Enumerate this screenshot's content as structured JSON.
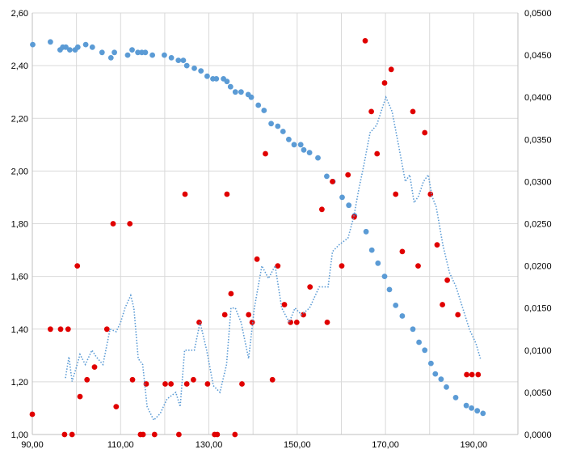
{
  "chart_data": {
    "type": "scatter",
    "title": "",
    "xlabel": "",
    "ylabel": "",
    "y2label": "",
    "xlim": [
      90,
      200
    ],
    "ylim": [
      1.0,
      2.6
    ],
    "y2lim": [
      0,
      0.05
    ],
    "grid": true,
    "legend": "none",
    "x_ticks": [
      "90,00",
      "110,00",
      "130,00",
      "150,00",
      "170,00",
      "190,00"
    ],
    "y_ticks": [
      "1,00",
      "1,20",
      "1,40",
      "1,60",
      "1,80",
      "2,00",
      "2,20",
      "2,40",
      "2,60"
    ],
    "y2_ticks": [
      "0,0000",
      "0,0050",
      "0,0100",
      "0,0150",
      "0,0200",
      "0,0250",
      "0,0300",
      "0,0350",
      "0,0400",
      "0,0450",
      "0,0500"
    ],
    "series": [
      {
        "axis": "left",
        "style": "markers",
        "color": "#5b9bd5",
        "points": [
          [
            90.1,
            2.48
          ],
          [
            94.1,
            2.49
          ],
          [
            96.3,
            2.46
          ],
          [
            96.9,
            2.47
          ],
          [
            97.6,
            2.47
          ],
          [
            98.5,
            2.46
          ],
          [
            99.7,
            2.46
          ],
          [
            100.3,
            2.47
          ],
          [
            102.1,
            2.48
          ],
          [
            103.6,
            2.47
          ],
          [
            105.8,
            2.45
          ],
          [
            107.8,
            2.43
          ],
          [
            108.6,
            2.45
          ],
          [
            111.6,
            2.44
          ],
          [
            112.6,
            2.46
          ],
          [
            113.9,
            2.45
          ],
          [
            114.8,
            2.45
          ],
          [
            115.6,
            2.45
          ],
          [
            117.2,
            2.44
          ],
          [
            119.9,
            2.44
          ],
          [
            121.5,
            2.43
          ],
          [
            123.1,
            2.42
          ],
          [
            124.2,
            2.42
          ],
          [
            125.0,
            2.4
          ],
          [
            126.7,
            2.39
          ],
          [
            128.2,
            2.38
          ],
          [
            129.6,
            2.36
          ],
          [
            130.9,
            2.35
          ],
          [
            131.7,
            2.35
          ],
          [
            133.3,
            2.35
          ],
          [
            134.1,
            2.34
          ],
          [
            134.9,
            2.32
          ],
          [
            136.0,
            2.3
          ],
          [
            137.3,
            2.3
          ],
          [
            138.9,
            2.29
          ],
          [
            139.6,
            2.28
          ],
          [
            141.2,
            2.25
          ],
          [
            142.5,
            2.23
          ],
          [
            144.1,
            2.18
          ],
          [
            145.6,
            2.17
          ],
          [
            146.8,
            2.15
          ],
          [
            148.1,
            2.12
          ],
          [
            149.3,
            2.1
          ],
          [
            150.8,
            2.1
          ],
          [
            151.5,
            2.08
          ],
          [
            152.8,
            2.07
          ],
          [
            154.7,
            2.05
          ],
          [
            156.7,
            1.98
          ],
          [
            158.1,
            1.96
          ],
          [
            160.2,
            1.9
          ],
          [
            161.7,
            1.87
          ],
          [
            163.0,
            1.83
          ],
          [
            165.6,
            1.77
          ],
          [
            166.9,
            1.7
          ],
          [
            168.3,
            1.65
          ],
          [
            169.8,
            1.6
          ],
          [
            170.9,
            1.55
          ],
          [
            172.3,
            1.49
          ],
          [
            173.8,
            1.45
          ],
          [
            176.2,
            1.4
          ],
          [
            177.6,
            1.35
          ],
          [
            178.9,
            1.32
          ],
          [
            180.3,
            1.27
          ],
          [
            181.3,
            1.23
          ],
          [
            182.6,
            1.21
          ],
          [
            183.8,
            1.18
          ],
          [
            185.9,
            1.14
          ],
          [
            188.3,
            1.11
          ],
          [
            189.5,
            1.1
          ],
          [
            190.8,
            1.09
          ],
          [
            192.1,
            1.08
          ]
        ]
      },
      {
        "axis": "right",
        "style": "markers",
        "color": "#e00000",
        "points": [
          [
            90.0,
            0.0024
          ],
          [
            94.1,
            0.0125
          ],
          [
            96.4,
            0.0125
          ],
          [
            97.3,
            0.0
          ],
          [
            98.1,
            0.0125
          ],
          [
            99.0,
            0.0
          ],
          [
            100.2,
            0.02
          ],
          [
            100.8,
            0.0045
          ],
          [
            102.4,
            0.0065
          ],
          [
            104.1,
            0.008
          ],
          [
            106.9,
            0.0125
          ],
          [
            108.3,
            0.025
          ],
          [
            109.0,
            0.0033
          ],
          [
            112.1,
            0.025
          ],
          [
            112.7,
            0.0065
          ],
          [
            114.5,
            0.0
          ],
          [
            115.1,
            0.0
          ],
          [
            115.8,
            0.006
          ],
          [
            117.7,
            0.0
          ],
          [
            120.1,
            0.006
          ],
          [
            121.4,
            0.006
          ],
          [
            123.2,
            0.0
          ],
          [
            124.6,
            0.0285
          ],
          [
            125.0,
            0.006
          ],
          [
            126.5,
            0.0065
          ],
          [
            127.8,
            0.0133
          ],
          [
            129.7,
            0.006
          ],
          [
            131.3,
            0.0
          ],
          [
            131.9,
            0.0
          ],
          [
            133.6,
            0.0142
          ],
          [
            134.1,
            0.0285
          ],
          [
            135.0,
            0.0167
          ],
          [
            135.9,
            0.0
          ],
          [
            137.5,
            0.006
          ],
          [
            139.0,
            0.0142
          ],
          [
            139.8,
            0.0133
          ],
          [
            140.9,
            0.0208
          ],
          [
            142.8,
            0.0333
          ],
          [
            144.4,
            0.0065
          ],
          [
            145.6,
            0.02
          ],
          [
            147.1,
            0.0154
          ],
          [
            148.5,
            0.0133
          ],
          [
            149.9,
            0.0133
          ],
          [
            151.4,
            0.0142
          ],
          [
            152.9,
            0.0175
          ],
          [
            155.6,
            0.0267
          ],
          [
            156.8,
            0.0133
          ],
          [
            158.0,
            0.03
          ],
          [
            160.1,
            0.02
          ],
          [
            161.5,
            0.0308
          ],
          [
            162.9,
            0.0258
          ],
          [
            165.4,
            0.0467
          ],
          [
            166.8,
            0.0383
          ],
          [
            168.1,
            0.0333
          ],
          [
            169.8,
            0.0417
          ],
          [
            171.3,
            0.0433
          ],
          [
            172.3,
            0.0285
          ],
          [
            173.8,
            0.0217
          ],
          [
            176.2,
            0.0383
          ],
          [
            177.4,
            0.02
          ],
          [
            178.9,
            0.0358
          ],
          [
            180.2,
            0.0285
          ],
          [
            181.7,
            0.0225
          ],
          [
            182.9,
            0.0154
          ],
          [
            184.0,
            0.0183
          ],
          [
            186.4,
            0.0142
          ],
          [
            188.4,
            0.0071
          ],
          [
            189.6,
            0.0071
          ],
          [
            191.0,
            0.0071
          ]
        ]
      },
      {
        "axis": "right",
        "style": "dotted-line",
        "color": "#5b9bd5",
        "points": [
          [
            97.5,
            0.0067
          ],
          [
            98.3,
            0.0092
          ],
          [
            99.0,
            0.0063
          ],
          [
            100.0,
            0.008
          ],
          [
            100.8,
            0.0095
          ],
          [
            102.0,
            0.0083
          ],
          [
            103.5,
            0.01
          ],
          [
            104.5,
            0.0092
          ],
          [
            106.0,
            0.0083
          ],
          [
            107.6,
            0.0125
          ],
          [
            109.0,
            0.0122
          ],
          [
            110.0,
            0.0133
          ],
          [
            111.0,
            0.015
          ],
          [
            112.3,
            0.0165
          ],
          [
            113.0,
            0.015
          ],
          [
            114.0,
            0.009
          ],
          [
            115.0,
            0.0083
          ],
          [
            116.0,
            0.0033
          ],
          [
            117.5,
            0.0017
          ],
          [
            119.0,
            0.0025
          ],
          [
            120.5,
            0.0042
          ],
          [
            122.5,
            0.005
          ],
          [
            123.5,
            0.0033
          ],
          [
            124.5,
            0.01
          ],
          [
            126.7,
            0.01
          ],
          [
            128.0,
            0.0133
          ],
          [
            129.5,
            0.01
          ],
          [
            131.0,
            0.0058
          ],
          [
            132.5,
            0.005
          ],
          [
            134.0,
            0.0083
          ],
          [
            135.0,
            0.015
          ],
          [
            136.0,
            0.015
          ],
          [
            137.3,
            0.0133
          ],
          [
            139.0,
            0.009
          ],
          [
            140.3,
            0.015
          ],
          [
            142.0,
            0.02
          ],
          [
            143.5,
            0.0185
          ],
          [
            145.0,
            0.02
          ],
          [
            146.5,
            0.015
          ],
          [
            148.2,
            0.0133
          ],
          [
            149.5,
            0.015
          ],
          [
            151.0,
            0.0142
          ],
          [
            152.8,
            0.015
          ],
          [
            155.0,
            0.0175
          ],
          [
            157.0,
            0.0175
          ],
          [
            158.0,
            0.0217
          ],
          [
            159.5,
            0.0225
          ],
          [
            161.5,
            0.0233
          ],
          [
            162.8,
            0.0258
          ],
          [
            164.0,
            0.0292
          ],
          [
            165.0,
            0.0317
          ],
          [
            166.5,
            0.0358
          ],
          [
            168.0,
            0.0367
          ],
          [
            170.1,
            0.04
          ],
          [
            171.5,
            0.0383
          ],
          [
            173.0,
            0.0342
          ],
          [
            174.5,
            0.03
          ],
          [
            175.5,
            0.0308
          ],
          [
            176.5,
            0.0275
          ],
          [
            177.5,
            0.0283
          ],
          [
            178.6,
            0.03
          ],
          [
            179.7,
            0.0308
          ],
          [
            180.5,
            0.0283
          ],
          [
            181.5,
            0.027
          ],
          [
            183.0,
            0.0225
          ],
          [
            184.5,
            0.0192
          ],
          [
            186.0,
            0.0175
          ],
          [
            187.5,
            0.015
          ],
          [
            189.0,
            0.0125
          ],
          [
            190.5,
            0.0108
          ],
          [
            191.5,
            0.009
          ]
        ]
      }
    ]
  }
}
